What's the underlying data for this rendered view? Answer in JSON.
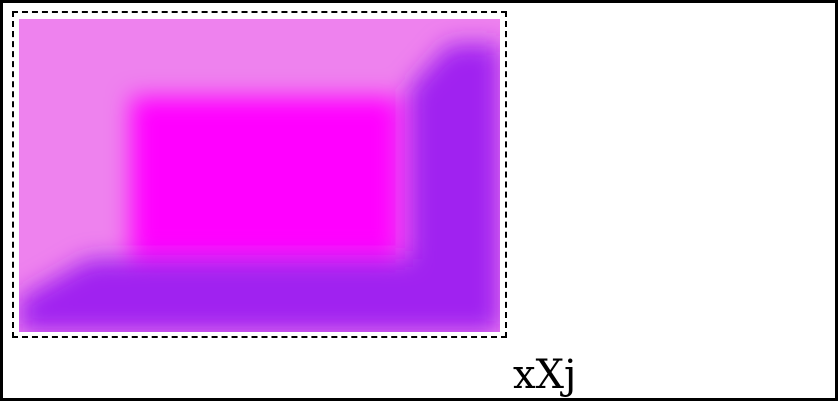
{
  "canvas": {
    "background_color": "#ffffff",
    "border_color": "#000000"
  },
  "image": {
    "name": "gradient-image",
    "colors": {
      "light_pink": "#ee82ee",
      "magenta": "#ff00ff",
      "violet": "#a020f0"
    }
  },
  "selection": {
    "style": "dashed",
    "color": "#000000"
  },
  "caption": {
    "text": "xXj"
  }
}
